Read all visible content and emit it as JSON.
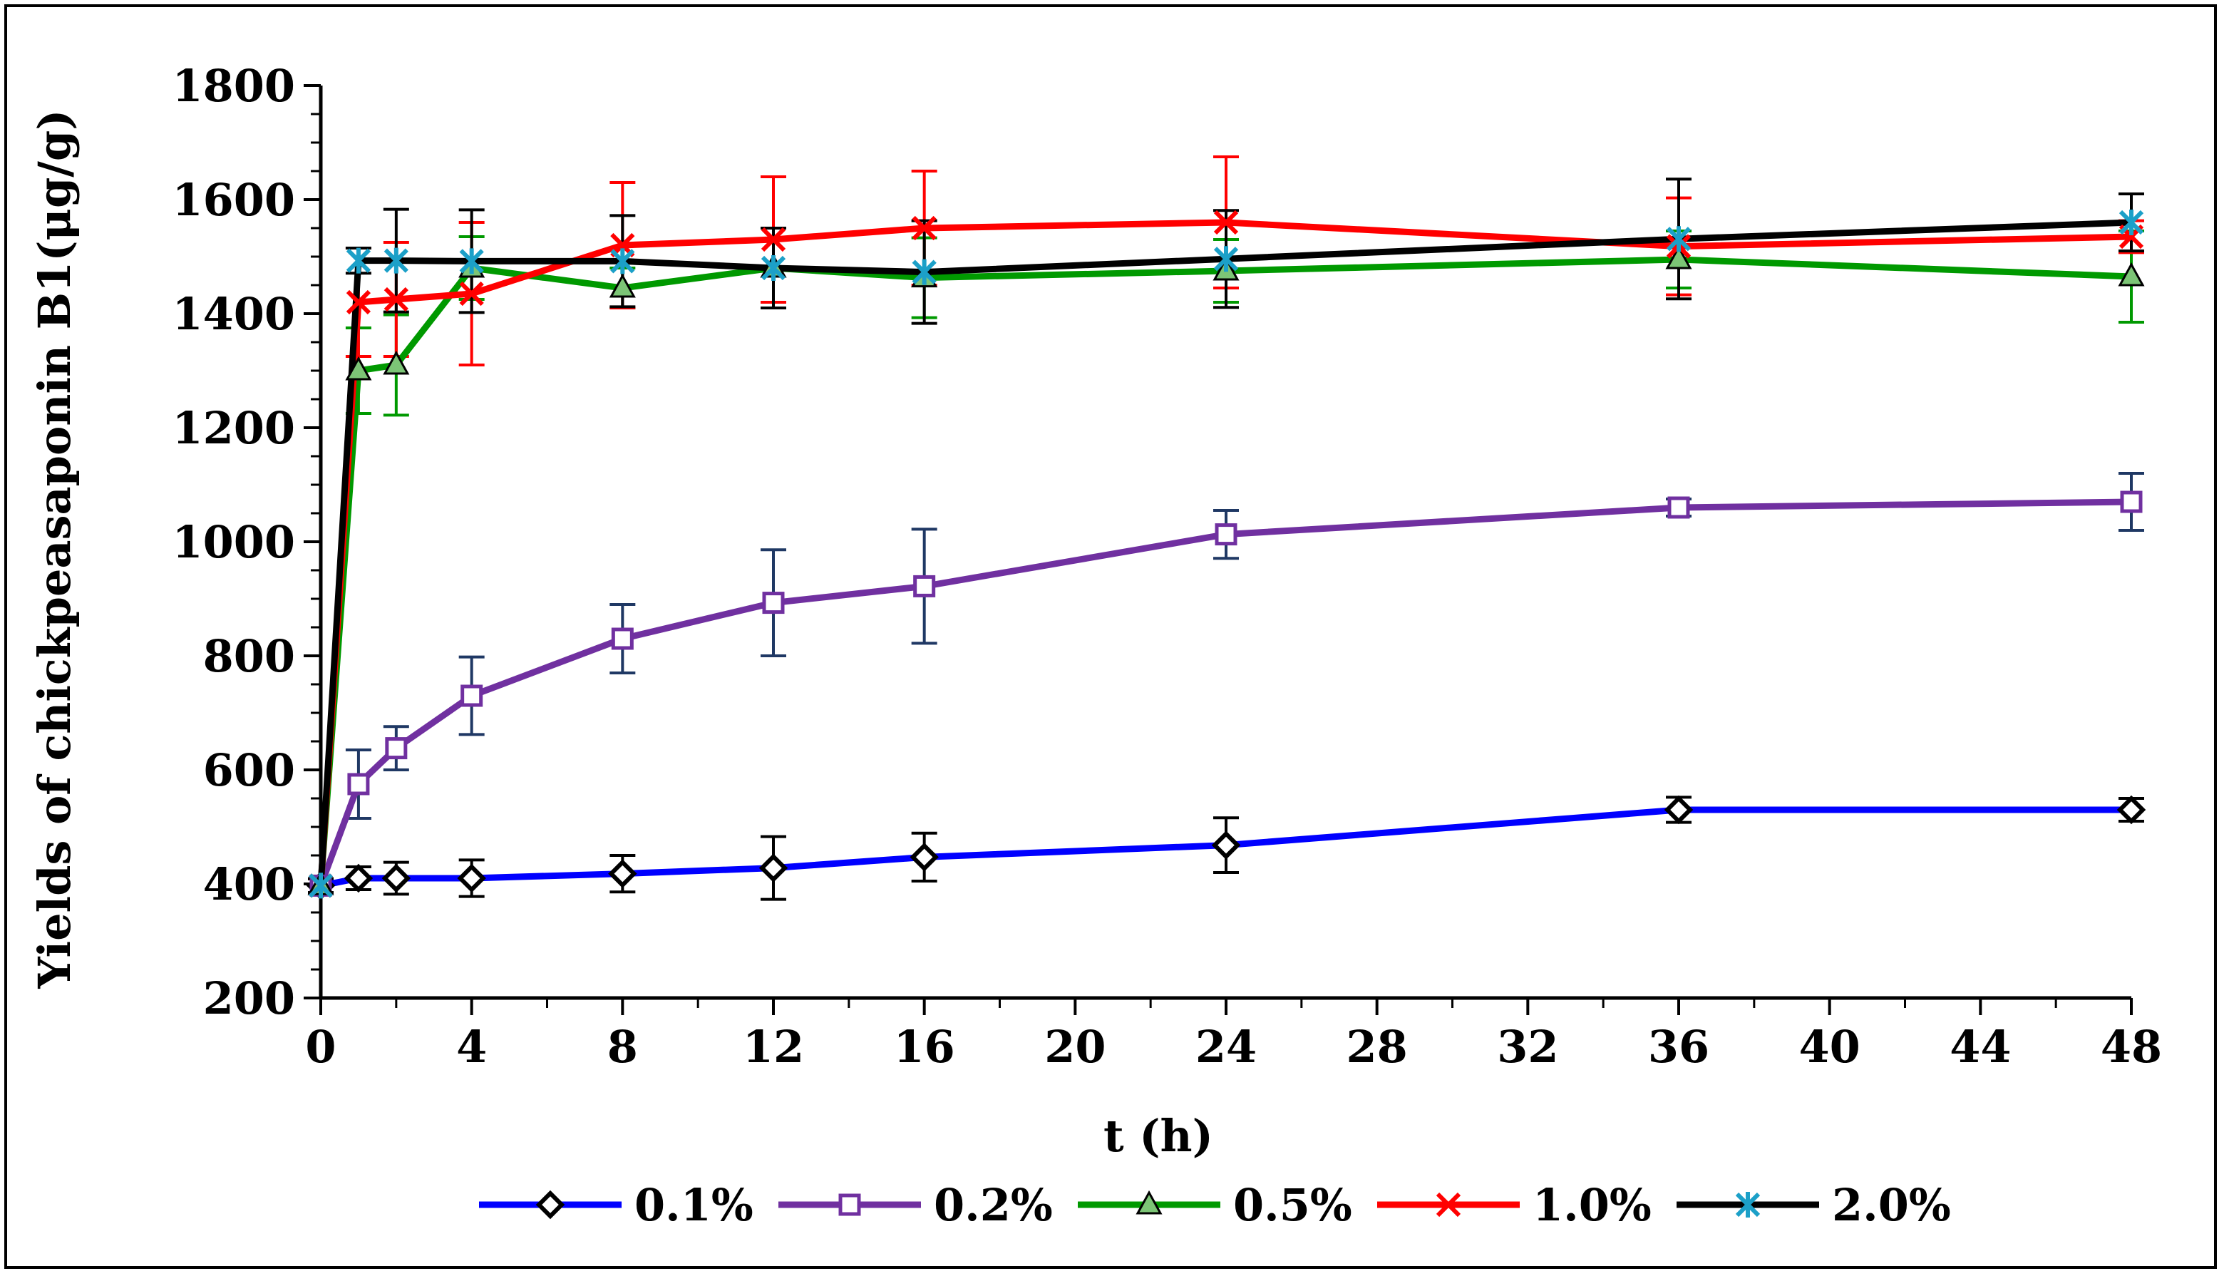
{
  "chart_data": {
    "type": "line",
    "title": "",
    "xlabel": "t (h)",
    "ylabel": "Yields of chickpeasaponin B1(μg/g)",
    "xlim": [
      0,
      48
    ],
    "ylim": [
      200,
      1800
    ],
    "xticks": [
      0,
      4,
      8,
      12,
      16,
      20,
      24,
      28,
      32,
      36,
      40,
      44,
      48
    ],
    "yticks": [
      200,
      400,
      600,
      800,
      1000,
      1200,
      1400,
      1600,
      1800
    ],
    "x": [
      0,
      1,
      2,
      4,
      8,
      12,
      16,
      24,
      36,
      48
    ],
    "legend_position": "bottom",
    "series": [
      {
        "name": "0.1%",
        "color": "#0000ff",
        "marker": "diamond",
        "marker_color": "#000000",
        "values": [
          397,
          410,
          410,
          410,
          418,
          428,
          447,
          468,
          530,
          530
        ],
        "errors": [
          12,
          20,
          28,
          32,
          32,
          55,
          42,
          48,
          22,
          20
        ],
        "error_color": "#000000"
      },
      {
        "name": "0.2%",
        "color": "#7030a0",
        "marker": "square",
        "marker_color": "#7030a0",
        "values": [
          397,
          575,
          638,
          730,
          830,
          893,
          922,
          1013,
          1060,
          1070
        ],
        "errors": [
          12,
          60,
          38,
          68,
          60,
          93,
          100,
          42,
          15,
          50
        ],
        "error_color": "#1f3864"
      },
      {
        "name": "0.5%",
        "color": "#009900",
        "marker": "triangle",
        "marker_color": "#009900",
        "values": [
          397,
          1300,
          1310,
          1480,
          1445,
          1480,
          1463,
          1475,
          1495,
          1465
        ],
        "errors": [
          12,
          75,
          88,
          55,
          35,
          70,
          70,
          55,
          50,
          80
        ],
        "error_color": "#009900"
      },
      {
        "name": "1.0%",
        "color": "#ff0000",
        "marker": "x",
        "marker_color": "#ff0000",
        "values": [
          397,
          1420,
          1425,
          1435,
          1520,
          1530,
          1550,
          1560,
          1518,
          1535
        ],
        "errors": [
          12,
          95,
          100,
          125,
          110,
          110,
          100,
          115,
          85,
          28
        ],
        "error_color": "#ff0000"
      },
      {
        "name": "2.0%",
        "color": "#000000",
        "marker": "asterisk",
        "marker_color": "#1ca0c8",
        "values": [
          397,
          1493,
          1493,
          1492,
          1492,
          1480,
          1473,
          1496,
          1531,
          1560
        ],
        "errors": [
          12,
          22,
          90,
          90,
          80,
          70,
          90,
          85,
          105,
          50
        ],
        "error_color": "#000000"
      }
    ]
  }
}
